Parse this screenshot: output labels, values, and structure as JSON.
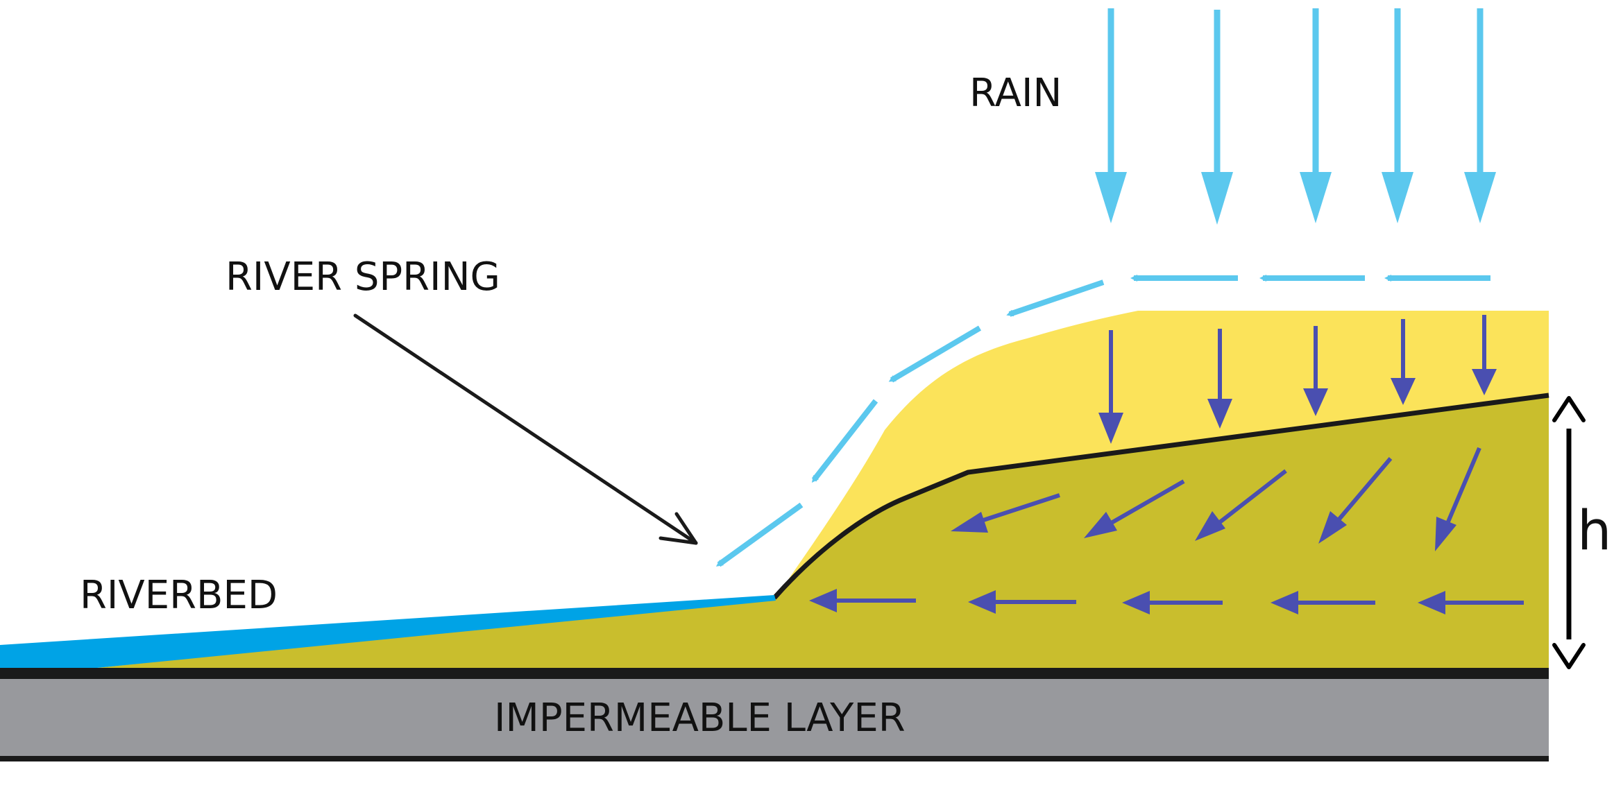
{
  "labels": {
    "rain": "RAIN",
    "river_spring": "RIVER SPRING",
    "riverbed": "RIVERBED",
    "impermeable_layer": "IMPERMEABLE LAYER",
    "height": "h"
  },
  "colors": {
    "rain_arrow": "#5bc8ee",
    "groundwater_arrow": "#4a4fb0",
    "unsaturated_soil": "#fbe35a",
    "saturated_soil": "#c9be2d",
    "impermeable_layer": "#98999d",
    "riverbed_water": "#00a3e6",
    "outline": "#1a1a1a"
  },
  "icons": [
    "rain-arrow-icon",
    "surface-runoff-arrow-icon",
    "infiltration-arrow-icon",
    "groundwater-flow-arrow-icon",
    "pointer-arrow-icon",
    "height-double-arrow-icon"
  ]
}
